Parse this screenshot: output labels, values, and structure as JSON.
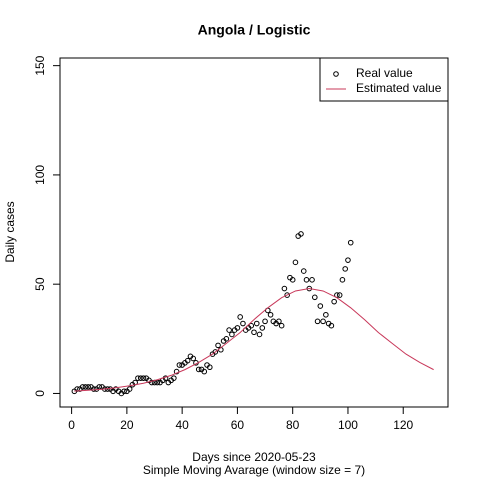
{
  "chart_data": {
    "type": "scatter",
    "title": "Angola / Logistic",
    "x_label": "Days since 2020-05-23",
    "subtitle": "Simple Moving Avarage (window size = 7)",
    "y_label": "Daily cases",
    "xlim": [
      -4.2,
      136.2
    ],
    "ylim": [
      -6.2,
      153.5
    ],
    "xticks": [
      0,
      20,
      40,
      60,
      80,
      100,
      120
    ],
    "yticks": [
      0,
      50,
      100,
      150
    ],
    "legend": "top-right",
    "series": [
      {
        "name": "Real value",
        "color": "#000000",
        "kind": "points",
        "x": [
          1,
          2,
          3,
          4,
          5,
          6,
          7,
          8,
          9,
          10,
          11,
          12,
          13,
          14,
          15,
          16,
          17,
          18,
          19,
          20,
          21,
          22,
          23,
          24,
          25,
          26,
          27,
          28,
          29,
          30,
          31,
          32,
          33,
          34,
          35,
          36,
          37,
          38,
          39,
          40,
          41,
          42,
          43,
          44,
          45,
          46,
          47,
          48,
          49,
          50,
          51,
          52,
          53,
          54,
          55,
          56,
          57,
          58,
          59,
          60,
          61,
          62,
          63,
          64,
          65,
          66,
          67,
          68,
          69,
          70,
          71,
          72,
          73,
          74,
          75,
          76,
          77,
          78,
          79,
          80,
          81,
          82,
          83,
          84,
          85,
          86,
          87,
          88,
          89,
          90,
          91,
          92,
          93,
          94,
          95,
          96,
          97,
          98,
          99,
          100,
          101
        ],
        "values": [
          1,
          2,
          2,
          3,
          3,
          3,
          3,
          2,
          2,
          3,
          3,
          2,
          2,
          2,
          1,
          2,
          1,
          0,
          1,
          1,
          2,
          4,
          5,
          7,
          7,
          7,
          7,
          6,
          5,
          5,
          5,
          5,
          6,
          7,
          5,
          6,
          7,
          10,
          13,
          13,
          14,
          15,
          17,
          16,
          14,
          11,
          11,
          10,
          13,
          12,
          18,
          19,
          22,
          20,
          24,
          25,
          29,
          27,
          29,
          30,
          35,
          32,
          29,
          30,
          31,
          28,
          32,
          27,
          30,
          33,
          38,
          36,
          33,
          32,
          33,
          31,
          48,
          45,
          53,
          52,
          60,
          72,
          73,
          56,
          52,
          48,
          52,
          44,
          33,
          40,
          33,
          36,
          32,
          31,
          42,
          45,
          45,
          52,
          57,
          61,
          69
        ]
      },
      {
        "name": "Estimated value",
        "color": "#c8385a",
        "kind": "line",
        "x": [
          1,
          6,
          11,
          16,
          21,
          26,
          31,
          36,
          41,
          46,
          51,
          56,
          61,
          66,
          71,
          76,
          81,
          86,
          91,
          96,
          101,
          106,
          111,
          116,
          121,
          126,
          131
        ],
        "values": [
          1.06,
          1.44,
          1.94,
          2.61,
          3.5,
          4.69,
          6.26,
          8.26,
          10.9,
          14.2,
          18.0,
          22.9,
          27.9,
          33.8,
          39.2,
          43.8,
          46.9,
          48,
          46.9,
          43.8,
          39.2,
          33.8,
          27.9,
          22.9,
          18.0,
          14.2,
          10.9
        ]
      }
    ]
  }
}
